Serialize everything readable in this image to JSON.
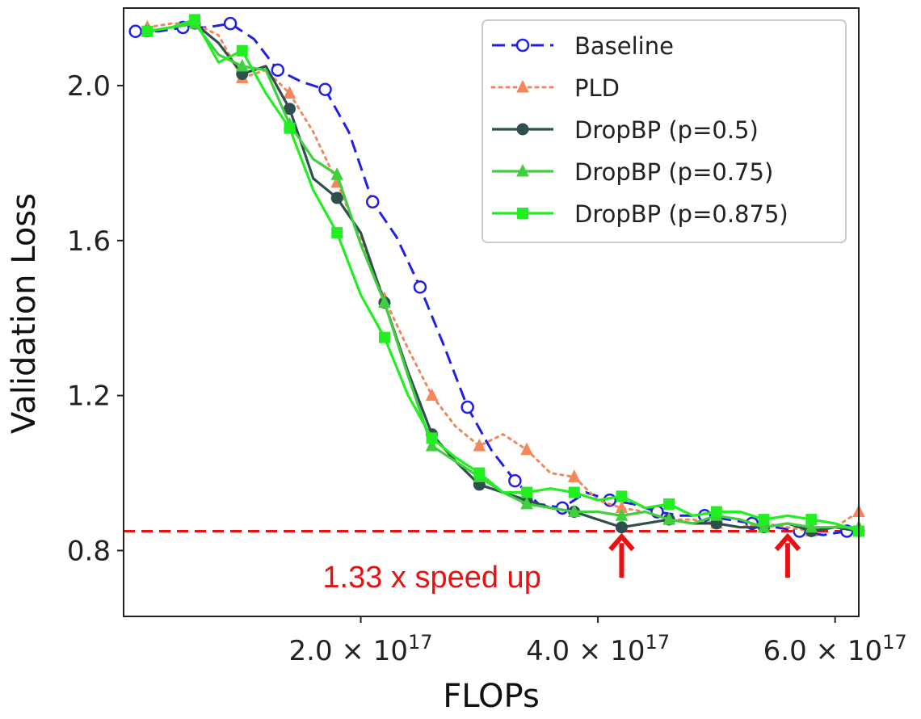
{
  "chart_data": {
    "type": "line",
    "title": "",
    "xlabel": "FLOPs",
    "ylabel": "Validation Loss",
    "xlim": [
      0.0,
      6.2
    ],
    "ylim": [
      0.63,
      2.2
    ],
    "x_unit_note": "x values in units of 1e17 FLOPs",
    "x_ticks": [
      {
        "value": 2.0,
        "mantissa": "2.0",
        "exp": "17"
      },
      {
        "value": 4.0,
        "mantissa": "4.0",
        "exp": "17"
      },
      {
        "value": 6.0,
        "mantissa": "6.0",
        "exp": "17"
      }
    ],
    "times_symbol": "×",
    "tick_base": "10",
    "y_ticks": [
      {
        "value": 0.8,
        "label": "0.8"
      },
      {
        "value": 1.2,
        "label": "1.2"
      },
      {
        "value": 1.6,
        "label": "1.6"
      },
      {
        "value": 2.0,
        "label": "2.0"
      }
    ],
    "legend_position": "top-right",
    "series": [
      {
        "name": "Baseline",
        "color": "#1f1fe8",
        "dash": "dashed",
        "marker": "open-circle",
        "marker_every": 2,
        "x": [
          0.1,
          0.3,
          0.5,
          0.7,
          0.9,
          1.1,
          1.3,
          1.5,
          1.7,
          1.9,
          2.1,
          2.3,
          2.5,
          2.7,
          2.9,
          3.1,
          3.3,
          3.5,
          3.7,
          3.9,
          4.1,
          4.3,
          4.5,
          4.7,
          4.9,
          5.1,
          5.3,
          5.5,
          5.7,
          5.9,
          6.1
        ],
        "y": [
          2.14,
          2.14,
          2.15,
          2.15,
          2.16,
          2.12,
          2.04,
          2.01,
          1.99,
          1.88,
          1.7,
          1.61,
          1.48,
          1.33,
          1.17,
          1.06,
          0.98,
          0.92,
          0.91,
          0.95,
          0.93,
          0.92,
          0.9,
          0.89,
          0.89,
          0.88,
          0.87,
          0.86,
          0.85,
          0.84,
          0.85
        ]
      },
      {
        "name": "PLD",
        "color": "#f4865a",
        "dash": "dotted",
        "marker": "triangle",
        "marker_every": 2,
        "x": [
          0.2,
          0.4,
          0.6,
          0.8,
          1.0,
          1.2,
          1.4,
          1.6,
          1.8,
          2.0,
          2.2,
          2.4,
          2.6,
          2.8,
          3.0,
          3.2,
          3.4,
          3.6,
          3.8,
          4.0,
          4.2,
          4.4,
          4.6,
          4.8,
          5.0,
          5.2,
          5.4,
          5.6,
          5.8,
          6.0,
          6.2
        ],
        "y": [
          2.15,
          2.16,
          2.16,
          2.13,
          2.02,
          2.04,
          1.98,
          1.88,
          1.75,
          1.6,
          1.45,
          1.32,
          1.2,
          1.12,
          1.07,
          1.1,
          1.06,
          1.0,
          0.99,
          0.93,
          0.91,
          0.9,
          0.88,
          0.88,
          0.87,
          0.86,
          0.87,
          0.86,
          0.85,
          0.86,
          0.9
        ]
      },
      {
        "name": "DropBP (p=0.5)",
        "color": "#2f4f4f",
        "dash": "solid",
        "marker": "filled-circle",
        "marker_every": 2,
        "x": [
          0.2,
          0.4,
          0.6,
          0.8,
          1.0,
          1.2,
          1.4,
          1.6,
          1.8,
          2.0,
          2.2,
          2.4,
          2.6,
          2.8,
          3.0,
          3.2,
          3.4,
          3.6,
          3.8,
          4.0,
          4.2,
          4.4,
          4.6,
          4.8,
          5.0,
          5.2,
          5.4,
          5.6,
          5.8,
          6.0,
          6.2
        ],
        "y": [
          2.14,
          2.15,
          2.16,
          2.11,
          2.03,
          2.05,
          1.94,
          1.76,
          1.71,
          1.62,
          1.44,
          1.26,
          1.1,
          1.03,
          0.97,
          0.95,
          0.93,
          0.91,
          0.9,
          0.88,
          0.86,
          0.87,
          0.88,
          0.87,
          0.87,
          0.86,
          0.86,
          0.87,
          0.85,
          0.86,
          0.85
        ]
      },
      {
        "name": "DropBP (p=0.75)",
        "color": "#3fcf3f",
        "dash": "solid",
        "marker": "triangle",
        "marker_every": 2,
        "x": [
          0.2,
          0.4,
          0.6,
          0.8,
          1.0,
          1.2,
          1.4,
          1.6,
          1.8,
          2.0,
          2.2,
          2.4,
          2.6,
          2.8,
          3.0,
          3.2,
          3.4,
          3.6,
          3.8,
          4.0,
          4.2,
          4.4,
          4.6,
          4.8,
          5.0,
          5.2,
          5.4,
          5.6,
          5.8,
          6.0,
          6.2
        ],
        "y": [
          2.14,
          2.15,
          2.16,
          2.08,
          2.05,
          2.04,
          1.9,
          1.81,
          1.77,
          1.59,
          1.44,
          1.25,
          1.07,
          1.03,
          0.99,
          0.95,
          0.92,
          0.91,
          0.9,
          0.9,
          0.89,
          0.9,
          0.88,
          0.87,
          0.89,
          0.88,
          0.86,
          0.87,
          0.86,
          0.86,
          0.86
        ]
      },
      {
        "name": "DropBP (p=0.875)",
        "color": "#22ee22",
        "dash": "solid",
        "marker": "square",
        "marker_every": 2,
        "x": [
          0.2,
          0.4,
          0.6,
          0.8,
          1.0,
          1.2,
          1.4,
          1.6,
          1.8,
          2.0,
          2.2,
          2.4,
          2.6,
          2.8,
          3.0,
          3.2,
          3.4,
          3.6,
          3.8,
          4.0,
          4.2,
          4.4,
          4.6,
          4.8,
          5.0,
          5.2,
          5.4,
          5.6,
          5.8,
          6.0,
          6.2
        ],
        "y": [
          2.14,
          2.15,
          2.17,
          2.06,
          2.09,
          1.98,
          1.89,
          1.73,
          1.62,
          1.46,
          1.35,
          1.2,
          1.09,
          1.04,
          1.0,
          0.95,
          0.95,
          0.96,
          0.95,
          0.93,
          0.94,
          0.91,
          0.92,
          0.89,
          0.9,
          0.9,
          0.88,
          0.89,
          0.88,
          0.87,
          0.85
        ]
      }
    ],
    "reference_line": {
      "y": 0.85,
      "color": "#e81010",
      "dash": "dashed"
    },
    "annotations": [
      {
        "type": "arrow",
        "x": 4.2,
        "y_tip": 0.84,
        "y_tail": 0.73,
        "color": "#e81010"
      },
      {
        "type": "arrow",
        "x": 5.6,
        "y_tip": 0.84,
        "y_tail": 0.73,
        "color": "#e81010"
      },
      {
        "type": "text",
        "text": "1.33 x speed up",
        "x": 2.6,
        "y": 0.705,
        "color": "#e81010"
      }
    ]
  }
}
